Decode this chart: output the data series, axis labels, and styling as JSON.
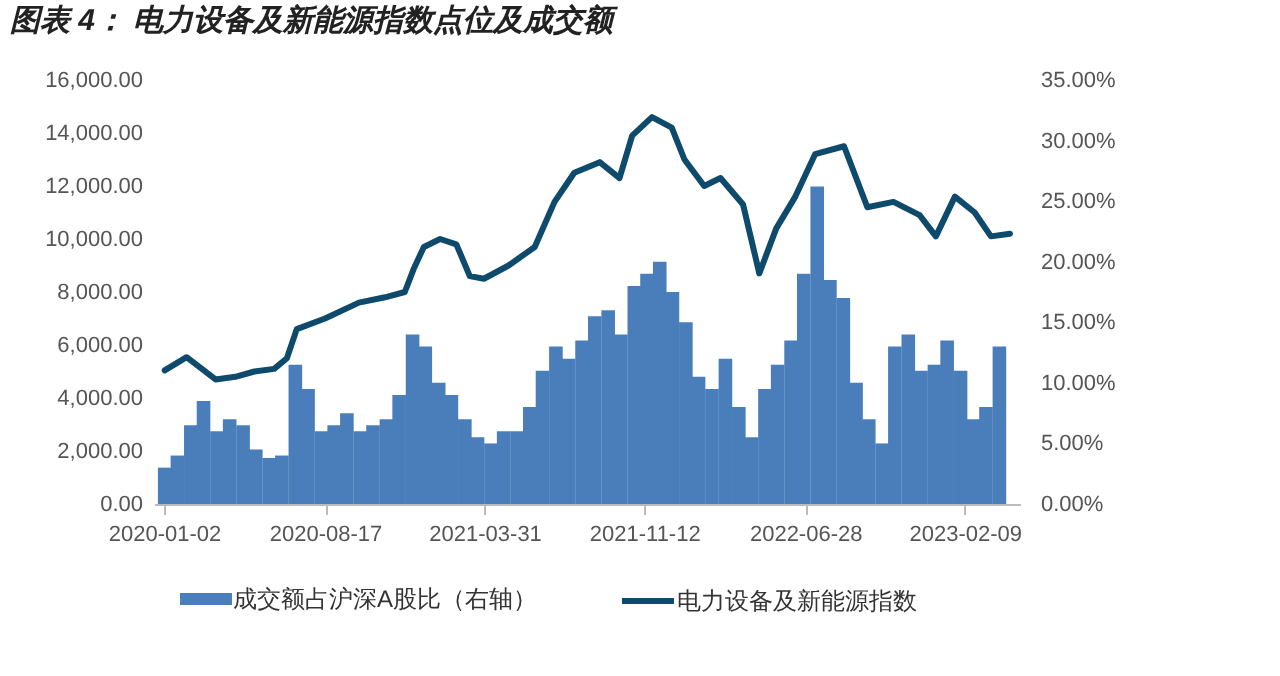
{
  "chart_data": {
    "type": "bar",
    "title": "图表 4： 电力设备及新能源指数点位及成交额",
    "legend": "bottom",
    "xlim": [
      "2020-01-02",
      "2023-04-14"
    ],
    "xticks": [
      "2020-01-02",
      "2020-08-17",
      "2021-03-31",
      "2021-11-12",
      "2022-06-28",
      "2023-02-09"
    ],
    "ylim": [
      0,
      16000
    ],
    "yticks": [
      {
        "value": 0,
        "label": "0.00"
      },
      {
        "value": 2000,
        "label": "2,000.00"
      },
      {
        "value": 4000,
        "label": "4,000.00"
      },
      {
        "value": 6000,
        "label": "6,000.00"
      },
      {
        "value": 8000,
        "label": "8,000.00"
      },
      {
        "value": 10000,
        "label": "10,000.00"
      },
      {
        "value": 12000,
        "label": "12,000.00"
      },
      {
        "value": 14000,
        "label": "14,000.00"
      },
      {
        "value": 16000,
        "label": "16,000.00"
      }
    ],
    "y2lim": [
      0,
      35
    ],
    "y2ticks": [
      {
        "value": 0,
        "label": "0.00%"
      },
      {
        "value": 5,
        "label": "5.00%"
      },
      {
        "value": 10,
        "label": "10.00%"
      },
      {
        "value": 15,
        "label": "15.00%"
      },
      {
        "value": 20,
        "label": "20.00%"
      },
      {
        "value": 25,
        "label": "25.00%"
      },
      {
        "value": 30,
        "label": "30.00%"
      },
      {
        "value": 35,
        "label": "35.00%"
      }
    ],
    "series": [
      {
        "name": "成交额占沪深A股比（右轴）",
        "axis": "y2",
        "color": "#4a7ebb",
        "x": [
          "2020-01-03",
          "2020-01-21",
          "2020-02-09",
          "2020-02-27",
          "2020-03-17",
          "2020-04-04",
          "2020-04-23",
          "2020-05-11",
          "2020-05-30",
          "2020-06-17",
          "2020-07-06",
          "2020-07-24",
          "2020-08-12",
          "2020-08-30",
          "2020-09-17",
          "2020-10-06",
          "2020-10-24",
          "2020-11-12",
          "2020-11-30",
          "2020-12-19",
          "2021-01-06",
          "2021-01-25",
          "2021-02-12",
          "2021-03-03",
          "2021-03-21",
          "2021-04-09",
          "2021-04-27",
          "2021-05-16",
          "2021-06-03",
          "2021-06-21",
          "2021-07-10",
          "2021-07-28",
          "2021-08-16",
          "2021-09-03",
          "2021-09-22",
          "2021-10-10",
          "2021-10-29",
          "2021-11-16",
          "2021-12-04",
          "2021-12-22",
          "2022-01-10",
          "2022-01-28",
          "2022-02-16",
          "2022-03-07",
          "2022-03-26",
          "2022-04-13",
          "2022-05-02",
          "2022-05-20",
          "2022-06-08",
          "2022-06-26",
          "2022-07-15",
          "2022-08-02",
          "2022-08-21",
          "2022-09-08",
          "2022-09-26",
          "2022-10-15",
          "2022-11-02",
          "2022-11-21",
          "2022-12-09",
          "2022-12-28",
          "2023-01-15",
          "2023-02-03",
          "2023-02-21",
          "2023-03-11",
          "2023-03-30"
        ],
        "values": [
          3.0,
          4.0,
          6.5,
          8.5,
          6.0,
          7.0,
          6.5,
          4.5,
          3.8,
          4.0,
          11.5,
          9.5,
          6.0,
          6.5,
          7.5,
          6.0,
          6.5,
          7.0,
          9.0,
          14.0,
          13.0,
          10.0,
          9.0,
          7.0,
          5.5,
          5.0,
          6.0,
          6.0,
          8.0,
          11.0,
          13.0,
          12.0,
          13.5,
          15.5,
          16.0,
          14.0,
          18.0,
          19.0,
          20.0,
          17.5,
          15.0,
          10.5,
          9.5,
          12.0,
          8.0,
          5.5,
          9.5,
          11.5,
          13.5,
          19.0,
          26.2,
          18.5,
          17.0,
          10.0,
          7.0,
          5.0,
          13.0,
          14.0,
          11.0,
          11.5,
          13.5,
          11.0,
          7.0,
          8.0,
          13.0
        ]
      },
      {
        "name": "电力设备及新能源指数",
        "type": "line",
        "color": "#0d4a6b",
        "x": [
          "2020-01-03",
          "2020-02-03",
          "2020-03-15",
          "2020-04-12",
          "2020-05-09",
          "2020-06-06",
          "2020-06-24",
          "2020-07-08",
          "2020-08-17",
          "2020-10-04",
          "2020-11-10",
          "2020-12-08",
          "2020-12-21",
          "2021-01-04",
          "2021-01-27",
          "2021-02-19",
          "2021-03-10",
          "2021-03-30",
          "2021-05-04",
          "2021-06-10",
          "2021-07-08",
          "2021-08-05",
          "2021-09-10",
          "2021-10-08",
          "2021-10-26",
          "2021-11-23",
          "2021-12-21",
          "2022-01-08",
          "2022-02-05",
          "2022-02-28",
          "2022-04-01",
          "2022-04-24",
          "2022-05-18",
          "2022-06-14",
          "2022-07-12",
          "2022-08-22",
          "2022-09-24",
          "2022-10-31",
          "2022-12-07",
          "2022-12-30",
          "2023-01-26",
          "2023-02-23",
          "2023-03-18",
          "2023-04-14"
        ],
        "values": [
          5040,
          5540,
          4700,
          4800,
          5000,
          5100,
          5500,
          6600,
          7000,
          7600,
          7800,
          8000,
          8900,
          9700,
          10000,
          9800,
          8600,
          8500,
          9000,
          9700,
          11400,
          12500,
          12900,
          12300,
          13900,
          14600,
          14200,
          13000,
          12000,
          12300,
          11300,
          8700,
          10400,
          11600,
          13200,
          13500,
          11200,
          11400,
          10900,
          10100,
          11600,
          11000,
          10100,
          10200
        ]
      }
    ]
  }
}
